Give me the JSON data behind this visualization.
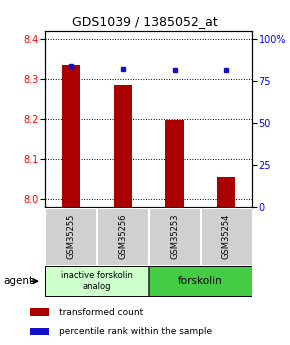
{
  "title": "GDS1039 / 1385052_at",
  "samples": [
    "GSM35255",
    "GSM35256",
    "GSM35253",
    "GSM35254"
  ],
  "bar_values": [
    8.335,
    8.285,
    8.197,
    8.055
  ],
  "percentile_values": [
    84.0,
    82.5,
    82.0,
    81.5
  ],
  "ylim_left": [
    7.98,
    8.42
  ],
  "ylim_right": [
    0,
    105
  ],
  "yticks_left": [
    8.0,
    8.1,
    8.2,
    8.3,
    8.4
  ],
  "yticks_right": [
    0,
    25,
    50,
    75,
    100
  ],
  "ytick_labels_right": [
    "0",
    "25",
    "50",
    "75",
    "100%"
  ],
  "bar_color": "#aa0000",
  "dot_color": "#1111cc",
  "group1_label": "inactive forskolin\nanalog",
  "group2_label": "forskolin",
  "group1_color": "#ccffcc",
  "group2_color": "#44cc44",
  "agent_label": "agent",
  "legend_bar_label": "transformed count",
  "legend_dot_label": "percentile rank within the sample",
  "title_fontsize": 9,
  "tick_fontsize": 7,
  "label_fontsize": 7.5,
  "bar_width": 0.35
}
